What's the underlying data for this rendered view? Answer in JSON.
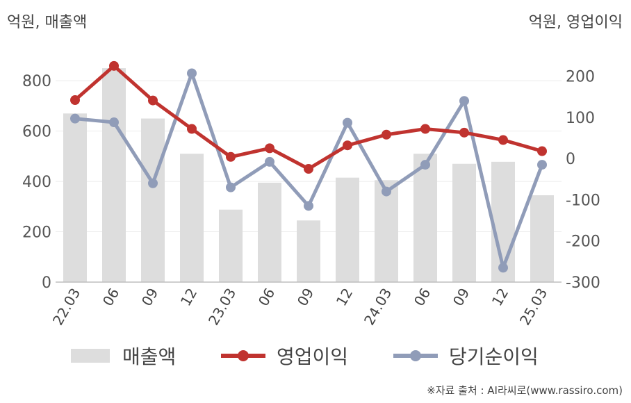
{
  "chart_data": {
    "type": "bar",
    "categories": [
      "22.03",
      "06",
      "09",
      "12",
      "23.03",
      "06",
      "09",
      "12",
      "24.03",
      "06",
      "09",
      "12",
      "25.03"
    ],
    "left_axis_label": "억원, 매출액",
    "right_axis_label": "억원, 영업이익",
    "left_ylim": [
      0,
      900
    ],
    "left_yticks": [
      0,
      200,
      400,
      600,
      800
    ],
    "right_ylim": [
      -300,
      250
    ],
    "right_yticks": [
      -300,
      -200,
      -100,
      0,
      100,
      200
    ],
    "grid": true,
    "legend_position": "bottom",
    "series": [
      {
        "name": "매출액",
        "type": "bar",
        "axis": "left",
        "color": "#dddddd",
        "values": [
          670,
          850,
          650,
          510,
          288,
          395,
          245,
          415,
          405,
          510,
          470,
          478,
          345
        ]
      },
      {
        "name": "영업이익",
        "type": "line",
        "axis": "right",
        "color": "#c0332f",
        "values": [
          142,
          225,
          141,
          72,
          4,
          25,
          -25,
          32,
          58,
          72,
          63,
          45,
          18
        ]
      },
      {
        "name": "당기순이익",
        "type": "line",
        "axis": "right",
        "color": "#909cb8",
        "values": [
          97,
          88,
          -60,
          207,
          -70,
          -8,
          -115,
          87,
          -80,
          -15,
          140,
          -265,
          -15
        ]
      }
    ]
  },
  "source_text": "※자료 출처 : AI라씨로(www.rassiro.com)"
}
